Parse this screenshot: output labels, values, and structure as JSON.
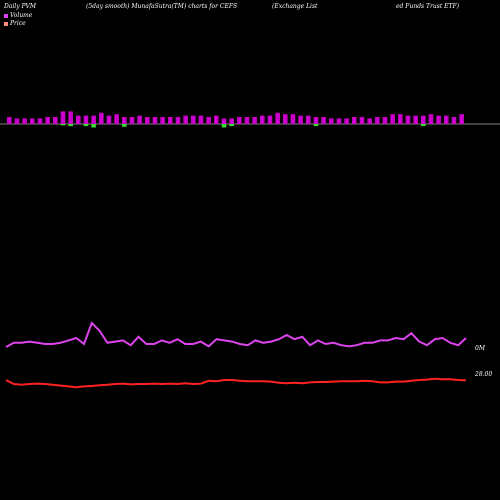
{
  "header": {
    "left": "Daily PVM",
    "smooth": "(5day smooth) MunafaSutra(TM) charts for CEFS",
    "name_part1": "(Exchange   List",
    "name_part2": "ed Funds Trust ETF)"
  },
  "legend": {
    "volume_label": "Volume",
    "price_label": "Price",
    "volume_color": "#e040fb",
    "price_color": "#ff8a80"
  },
  "axis_labels": {
    "volume_tick": "0M",
    "price_tick": "28.00"
  },
  "colors": {
    "bar_up": "#cc00cc",
    "bar_down": "#33dd33",
    "price_line": "#ff2222",
    "volume_line": "#dd44ee",
    "baseline": "#ffffff"
  },
  "chart_data": {
    "type": "line",
    "note_series": [
      "volume",
      "price"
    ],
    "bars": {
      "up": [
        1,
        1,
        1,
        1,
        1,
        1,
        1,
        0,
        0,
        1,
        0,
        0,
        1,
        1,
        1,
        0,
        1,
        1,
        1,
        1,
        1,
        1,
        1,
        1,
        1,
        1,
        1,
        1,
        0,
        0,
        1,
        1,
        1,
        1,
        1,
        1,
        1,
        1,
        1,
        1,
        0,
        1,
        1,
        1,
        1,
        1,
        1,
        1,
        1,
        1,
        1,
        1,
        1,
        1,
        0,
        1,
        1,
        1,
        1,
        1
      ],
      "heights_up": [
        0.5,
        0.4,
        0.4,
        0.4,
        0.4,
        0.5,
        0.5,
        0.9,
        0.9,
        0.6,
        0.6,
        0.6,
        0.8,
        0.6,
        0.7,
        0.5,
        0.5,
        0.6,
        0.5,
        0.5,
        0.5,
        0.5,
        0.5,
        0.6,
        0.6,
        0.6,
        0.5,
        0.6,
        0.4,
        0.4,
        0.5,
        0.5,
        0.5,
        0.6,
        0.6,
        0.8,
        0.7,
        0.7,
        0.6,
        0.6,
        0.5,
        0.5,
        0.4,
        0.4,
        0.4,
        0.5,
        0.5,
        0.4,
        0.5,
        0.5,
        0.7,
        0.7,
        0.6,
        0.6,
        0.6,
        0.7,
        0.6,
        0.6,
        0.5,
        0.7
      ],
      "heights_down": [
        0.0,
        0.0,
        0.0,
        0.0,
        0.0,
        0.0,
        0.0,
        0.2,
        0.3,
        0.0,
        0.3,
        0.5,
        0.0,
        0.0,
        0.0,
        0.4,
        0.0,
        0.0,
        0.0,
        0.0,
        0.0,
        0.0,
        0.0,
        0.0,
        0.0,
        0.0,
        0.0,
        0.0,
        0.5,
        0.3,
        0.0,
        0.0,
        0.0,
        0.0,
        0.0,
        0.0,
        0.0,
        0.0,
        0.0,
        0.0,
        0.3,
        0.0,
        0.0,
        0.0,
        0.0,
        0.0,
        0.0,
        0.0,
        0.0,
        0.0,
        0.0,
        0.0,
        0.0,
        0.0,
        0.3,
        0.0,
        0.0,
        0.0,
        0.0,
        0.0
      ]
    },
    "volume_line": [
      0.55,
      0.62,
      0.62,
      0.64,
      0.62,
      0.6,
      0.6,
      0.62,
      0.66,
      0.7,
      0.6,
      0.95,
      0.82,
      0.62,
      0.64,
      0.66,
      0.58,
      0.72,
      0.6,
      0.6,
      0.66,
      0.62,
      0.68,
      0.6,
      0.6,
      0.64,
      0.56,
      0.68,
      0.66,
      0.64,
      0.6,
      0.58,
      0.66,
      0.62,
      0.64,
      0.68,
      0.75,
      0.68,
      0.72,
      0.58,
      0.66,
      0.6,
      0.62,
      0.58,
      0.56,
      0.58,
      0.62,
      0.62,
      0.66,
      0.66,
      0.7,
      0.68,
      0.78,
      0.64,
      0.58,
      0.68,
      0.7,
      0.62,
      0.58,
      0.7
    ],
    "price_line": [
      0.5,
      0.4,
      0.38,
      0.4,
      0.41,
      0.4,
      0.38,
      0.36,
      0.34,
      0.32,
      0.34,
      0.35,
      0.37,
      0.38,
      0.4,
      0.41,
      0.39,
      0.4,
      0.4,
      0.41,
      0.4,
      0.41,
      0.4,
      0.42,
      0.4,
      0.41,
      0.48,
      0.47,
      0.5,
      0.5,
      0.48,
      0.47,
      0.47,
      0.47,
      0.46,
      0.43,
      0.42,
      0.43,
      0.42,
      0.44,
      0.45,
      0.45,
      0.46,
      0.47,
      0.47,
      0.47,
      0.48,
      0.47,
      0.44,
      0.44,
      0.46,
      0.46,
      0.48,
      0.5,
      0.51,
      0.53,
      0.52,
      0.52,
      0.5,
      0.49
    ]
  }
}
